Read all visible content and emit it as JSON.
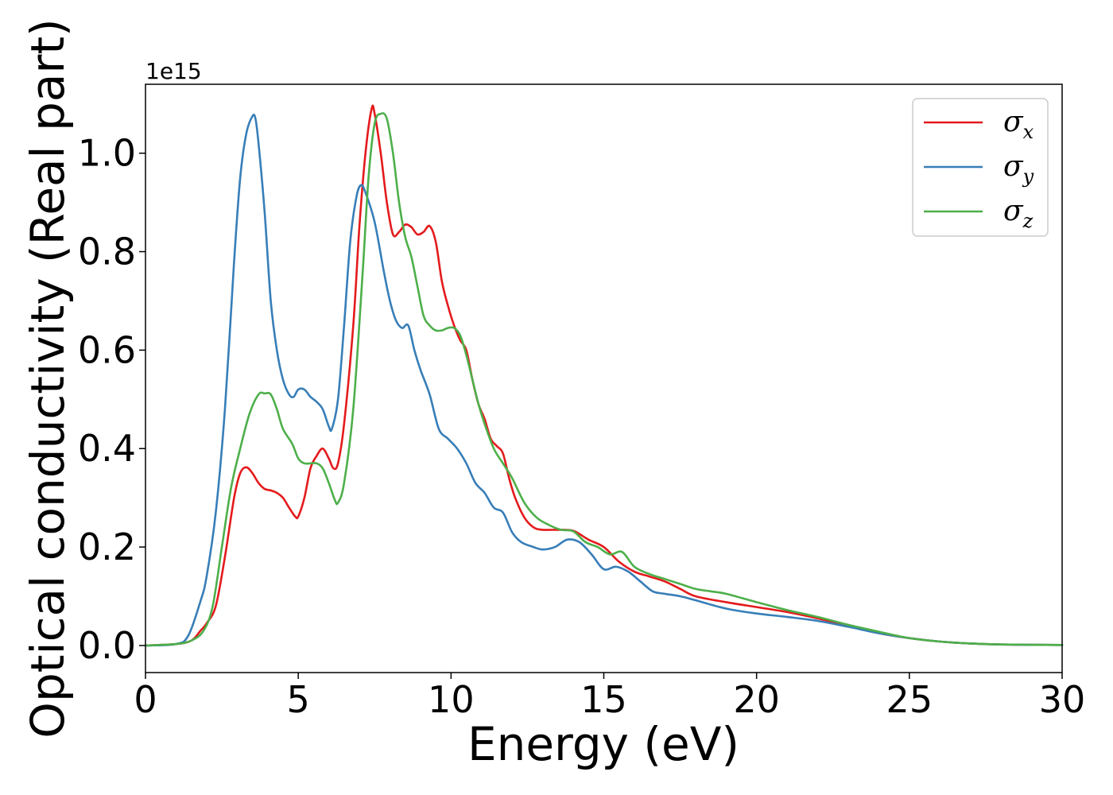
{
  "chart_data": {
    "type": "line",
    "title": "",
    "xlabel": "Energy (eV)",
    "ylabel": "Optical conductivity (Real part)",
    "y_offset_label": "1e15",
    "xlim": [
      0,
      30
    ],
    "ylim": [
      -0.055,
      1.14
    ],
    "xticks": [
      0,
      5,
      10,
      15,
      20,
      25,
      30
    ],
    "xtick_labels": [
      "0",
      "5",
      "10",
      "15",
      "20",
      "25",
      "30"
    ],
    "yticks": [
      0.0,
      0.2,
      0.4,
      0.6,
      0.8,
      1.0
    ],
    "ytick_labels": [
      "0.0",
      "0.2",
      "0.4",
      "0.6",
      "0.8",
      "1.0"
    ],
    "grid": false,
    "legend_position": "top-right",
    "series": [
      {
        "name": "σx",
        "legend_symbol": "σ",
        "legend_subscript": "x",
        "color": "#e41a1c",
        "x": [
          0,
          1,
          1.5,
          1.8,
          2.0,
          2.3,
          2.6,
          2.9,
          3.1,
          3.3,
          3.5,
          3.7,
          3.9,
          4.1,
          4.3,
          4.5,
          4.7,
          4.9,
          5.0,
          5.2,
          5.4,
          5.6,
          5.8,
          6.0,
          6.15,
          6.3,
          6.5,
          6.8,
          7.0,
          7.2,
          7.4,
          7.5,
          7.7,
          7.9,
          8.1,
          8.3,
          8.5,
          8.7,
          8.9,
          9.1,
          9.3,
          9.5,
          9.7,
          9.9,
          10.1,
          10.3,
          10.5,
          10.7,
          10.9,
          11.1,
          11.3,
          11.5,
          11.7,
          11.9,
          12.1,
          12.4,
          12.7,
          13.0,
          13.5,
          14.0,
          14.5,
          15.0,
          15.5,
          16.0,
          16.5,
          17.0,
          17.5,
          18.0,
          19.0,
          20.0,
          21.0,
          22.0,
          23.0,
          24.0,
          25.0,
          26.0,
          27.0,
          28.0,
          30.0
        ],
        "y": [
          0,
          0.003,
          0.01,
          0.03,
          0.045,
          0.08,
          0.18,
          0.3,
          0.35,
          0.362,
          0.35,
          0.33,
          0.318,
          0.315,
          0.31,
          0.3,
          0.28,
          0.262,
          0.262,
          0.3,
          0.36,
          0.385,
          0.4,
          0.38,
          0.36,
          0.37,
          0.45,
          0.65,
          0.85,
          1.0,
          1.09,
          1.08,
          1.0,
          0.9,
          0.835,
          0.84,
          0.855,
          0.85,
          0.835,
          0.84,
          0.852,
          0.82,
          0.74,
          0.69,
          0.65,
          0.62,
          0.6,
          0.54,
          0.49,
          0.46,
          0.42,
          0.405,
          0.39,
          0.34,
          0.3,
          0.26,
          0.24,
          0.235,
          0.235,
          0.233,
          0.215,
          0.2,
          0.17,
          0.15,
          0.14,
          0.13,
          0.115,
          0.1,
          0.088,
          0.078,
          0.068,
          0.055,
          0.04,
          0.025,
          0.015,
          0.008,
          0.004,
          0.002,
          0.001
        ]
      },
      {
        "name": "σy",
        "legend_symbol": "σ",
        "legend_subscript": "y",
        "color": "#377eb8",
        "x": [
          0,
          1,
          1.4,
          1.8,
          2.0,
          2.3,
          2.6,
          2.9,
          3.1,
          3.3,
          3.5,
          3.6,
          3.7,
          3.9,
          4.1,
          4.3,
          4.5,
          4.7,
          4.85,
          5.0,
          5.2,
          5.4,
          5.6,
          5.8,
          6.0,
          6.1,
          6.3,
          6.5,
          6.7,
          6.9,
          7.05,
          7.2,
          7.5,
          7.8,
          8.0,
          8.2,
          8.4,
          8.6,
          8.8,
          9.0,
          9.3,
          9.6,
          9.9,
          10.2,
          10.5,
          10.8,
          11.1,
          11.4,
          11.7,
          12.0,
          12.3,
          12.7,
          13.0,
          13.4,
          13.8,
          14.2,
          14.6,
          15.0,
          15.4,
          15.8,
          16.2,
          16.6,
          17.0,
          17.5,
          18.0,
          19.0,
          20.0,
          21.0,
          22.0,
          23.0,
          24.0,
          25.0,
          26.0,
          27.0,
          28.0,
          30.0
        ],
        "y": [
          0,
          0.003,
          0.02,
          0.09,
          0.14,
          0.27,
          0.48,
          0.78,
          0.95,
          1.04,
          1.075,
          1.07,
          1.02,
          0.88,
          0.7,
          0.6,
          0.54,
          0.51,
          0.505,
          0.52,
          0.52,
          0.505,
          0.495,
          0.48,
          0.445,
          0.44,
          0.5,
          0.65,
          0.82,
          0.91,
          0.935,
          0.92,
          0.86,
          0.76,
          0.7,
          0.66,
          0.645,
          0.65,
          0.6,
          0.56,
          0.51,
          0.44,
          0.42,
          0.4,
          0.37,
          0.33,
          0.31,
          0.28,
          0.27,
          0.23,
          0.21,
          0.2,
          0.195,
          0.2,
          0.215,
          0.21,
          0.185,
          0.155,
          0.16,
          0.15,
          0.13,
          0.11,
          0.105,
          0.1,
          0.092,
          0.075,
          0.065,
          0.058,
          0.05,
          0.038,
          0.025,
          0.015,
          0.008,
          0.004,
          0.002,
          0.001
        ]
      },
      {
        "name": "σz",
        "legend_symbol": "σ",
        "legend_subscript": "z",
        "color": "#4daf4a",
        "x": [
          0,
          1,
          1.5,
          1.9,
          2.2,
          2.5,
          2.8,
          3.1,
          3.4,
          3.7,
          3.9,
          4.1,
          4.3,
          4.5,
          4.8,
          5.0,
          5.2,
          5.4,
          5.6,
          5.8,
          6.0,
          6.2,
          6.3,
          6.5,
          6.8,
          7.1,
          7.3,
          7.5,
          7.7,
          7.9,
          8.1,
          8.3,
          8.5,
          8.7,
          8.9,
          9.1,
          9.3,
          9.5,
          9.7,
          9.9,
          10.1,
          10.3,
          10.5,
          10.7,
          10.9,
          11.1,
          11.4,
          11.7,
          12.0,
          12.4,
          12.8,
          13.2,
          13.6,
          14.0,
          14.4,
          14.8,
          15.2,
          15.6,
          16.0,
          16.5,
          17.0,
          17.5,
          18.0,
          18.5,
          19.0,
          20.0,
          21.0,
          22.0,
          23.0,
          24.0,
          25.0,
          26.0,
          27.0,
          28.0,
          30.0
        ],
        "y": [
          0,
          0.003,
          0.01,
          0.03,
          0.08,
          0.2,
          0.32,
          0.4,
          0.47,
          0.51,
          0.512,
          0.51,
          0.48,
          0.44,
          0.41,
          0.38,
          0.37,
          0.37,
          0.37,
          0.36,
          0.33,
          0.295,
          0.29,
          0.33,
          0.48,
          0.75,
          0.95,
          1.06,
          1.08,
          1.07,
          1.0,
          0.9,
          0.83,
          0.79,
          0.73,
          0.67,
          0.65,
          0.64,
          0.64,
          0.645,
          0.645,
          0.63,
          0.59,
          0.54,
          0.49,
          0.45,
          0.4,
          0.37,
          0.34,
          0.29,
          0.26,
          0.245,
          0.235,
          0.232,
          0.21,
          0.2,
          0.185,
          0.19,
          0.16,
          0.145,
          0.135,
          0.125,
          0.115,
          0.11,
          0.105,
          0.088,
          0.072,
          0.058,
          0.042,
          0.028,
          0.015,
          0.008,
          0.004,
          0.002,
          0.001
        ]
      }
    ]
  }
}
